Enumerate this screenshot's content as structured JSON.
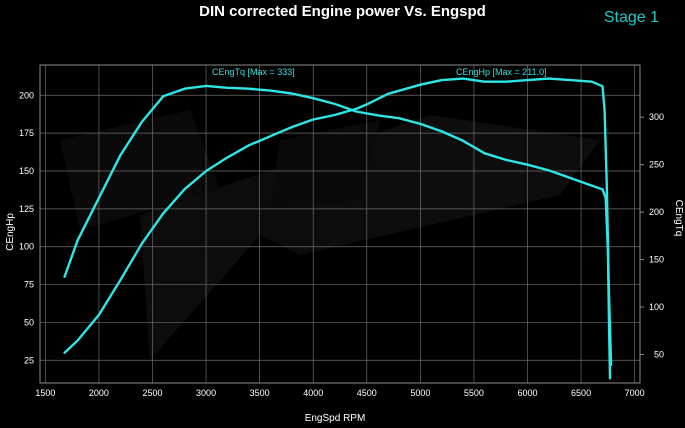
{
  "title": "DIN corrected Engine power Vs. Engspd",
  "stage_label": "Stage 1",
  "colors": {
    "background": "#000000",
    "line": "#2ee6e6",
    "grid": "#6e6e6e",
    "text": "#ffffff",
    "accent": "#1fc8c8"
  },
  "chart_data": {
    "type": "line",
    "title": "DIN corrected Engine power Vs. Engspd",
    "xlabel": "EngSpd RPM",
    "ylabel_left": "CEngHp",
    "ylabel_right": "CEngTq",
    "xlim": [
      1450,
      7050
    ],
    "ylim_left": [
      10,
      220
    ],
    "ylim_right": [
      20,
      355
    ],
    "x_ticks": [
      "1500",
      "2000",
      "2500",
      "3000",
      "3500",
      "4000",
      "4500",
      "5000",
      "5500",
      "6000",
      "6500",
      "7000"
    ],
    "y_ticks_left": [
      "25",
      "50",
      "75",
      "100",
      "125",
      "150",
      "175",
      "200"
    ],
    "y_ticks_right": [
      "50",
      "100",
      "150",
      "200",
      "250",
      "300"
    ],
    "grid": true,
    "series": [
      {
        "name": "CEngHp [Max = 211.0]",
        "axis": "left",
        "points": [
          [
            1680,
            30
          ],
          [
            1800,
            38
          ],
          [
            2000,
            55
          ],
          [
            2200,
            78
          ],
          [
            2400,
            102
          ],
          [
            2600,
            122
          ],
          [
            2800,
            138
          ],
          [
            3000,
            150
          ],
          [
            3200,
            159
          ],
          [
            3400,
            167
          ],
          [
            3600,
            173
          ],
          [
            3800,
            179
          ],
          [
            4000,
            184
          ],
          [
            4200,
            187
          ],
          [
            4400,
            191
          ],
          [
            4500,
            194
          ],
          [
            4700,
            201
          ],
          [
            5000,
            207
          ],
          [
            5200,
            210
          ],
          [
            5400,
            211
          ],
          [
            5600,
            209
          ],
          [
            5800,
            209
          ],
          [
            6000,
            210
          ],
          [
            6200,
            211
          ],
          [
            6400,
            210
          ],
          [
            6600,
            209
          ],
          [
            6700,
            206
          ],
          [
            6720,
            190
          ],
          [
            6740,
            140
          ],
          [
            6760,
            70
          ],
          [
            6780,
            22
          ]
        ]
      },
      {
        "name": "CEngTq [Max = 333]",
        "axis": "right",
        "points": [
          [
            1680,
            132
          ],
          [
            1800,
            170
          ],
          [
            2000,
            215
          ],
          [
            2200,
            260
          ],
          [
            2400,
            295
          ],
          [
            2600,
            322
          ],
          [
            2800,
            330
          ],
          [
            3000,
            333
          ],
          [
            3200,
            331
          ],
          [
            3400,
            330
          ],
          [
            3600,
            328
          ],
          [
            3800,
            325
          ],
          [
            4000,
            320
          ],
          [
            4200,
            314
          ],
          [
            4400,
            306
          ],
          [
            4600,
            302
          ],
          [
            4800,
            299
          ],
          [
            5000,
            293
          ],
          [
            5200,
            285
          ],
          [
            5400,
            275
          ],
          [
            5600,
            262
          ],
          [
            5800,
            255
          ],
          [
            6000,
            250
          ],
          [
            6200,
            244
          ],
          [
            6400,
            236
          ],
          [
            6600,
            228
          ],
          [
            6700,
            224
          ],
          [
            6730,
            215
          ],
          [
            6750,
            160
          ],
          [
            6760,
            90
          ],
          [
            6770,
            25
          ]
        ]
      }
    ]
  }
}
